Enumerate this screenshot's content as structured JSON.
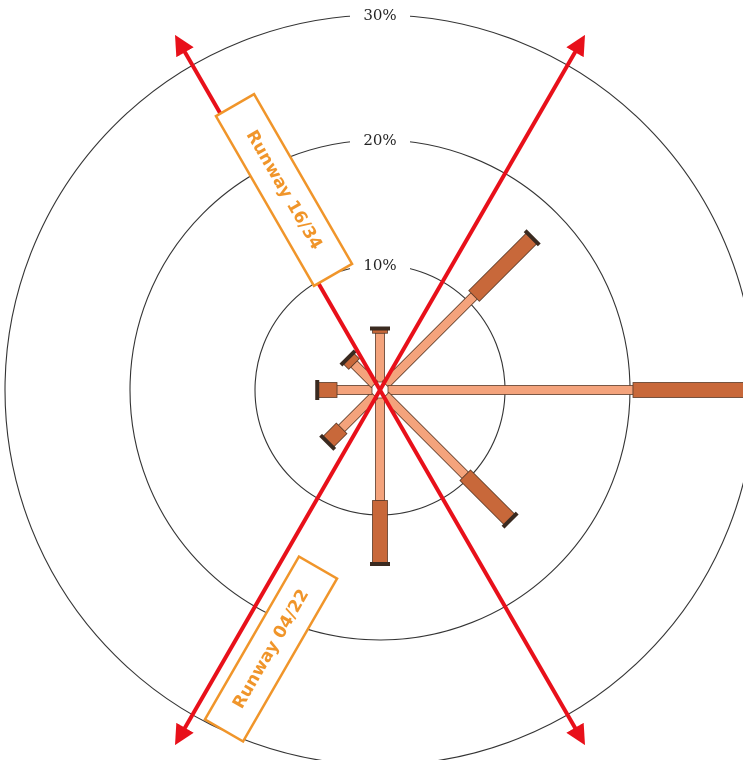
{
  "chart_data": {
    "type": "wind-rose",
    "rings": [
      {
        "value": 10,
        "label": "10%"
      },
      {
        "value": 20,
        "label": "20%"
      },
      {
        "value": 30,
        "label": "30%"
      }
    ],
    "directions": [
      {
        "bearing": 0,
        "segments": [
          3.9,
          0.3
        ]
      },
      {
        "bearing": 45,
        "segments": [
          10,
          6.5
        ]
      },
      {
        "bearing": 90,
        "segments": [
          19.6,
          10
        ]
      },
      {
        "bearing": 135,
        "segments": [
          9,
          5
        ]
      },
      {
        "bearing": 180,
        "segments": [
          8.2,
          5.0
        ]
      },
      {
        "bearing": 225,
        "segments": [
          3.7,
          1.5
        ]
      },
      {
        "bearing": 270,
        "segments": [
          2.8,
          1.5
        ]
      },
      {
        "bearing": 315,
        "segments": [
          2.3,
          0.6
        ]
      }
    ],
    "runways": [
      {
        "label": "Runway 16/34",
        "bearing": 330
      },
      {
        "label": "Runway 04/22",
        "bearing": 30
      }
    ],
    "colors": {
      "inner_segment": "#f4a37c",
      "outer_segment": "#c8683a",
      "ring": "#333333",
      "runway_line": "#e8101a",
      "runway_label": "#f0952a"
    }
  }
}
